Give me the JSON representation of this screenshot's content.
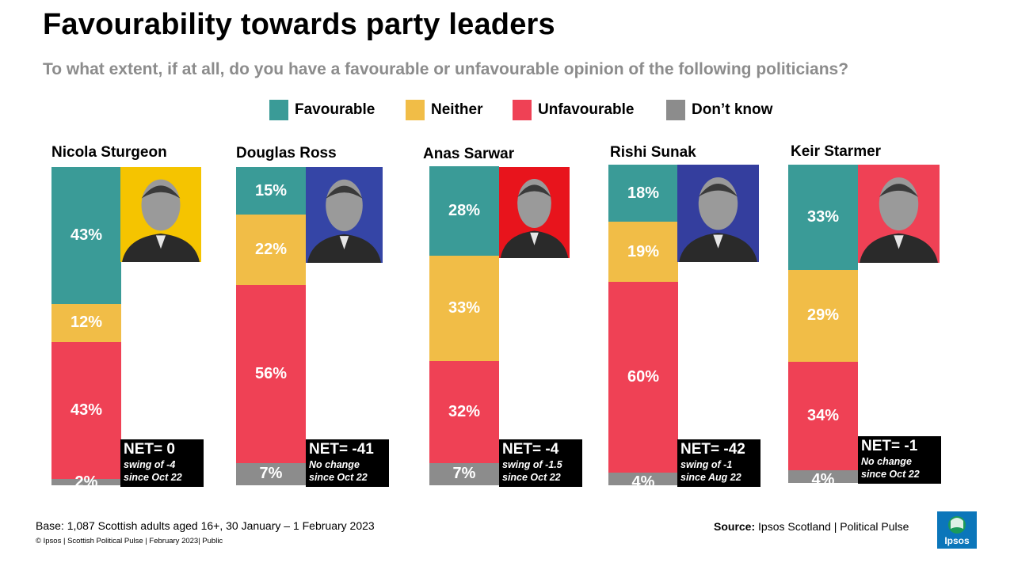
{
  "title": "Favourability towards party leaders",
  "subtitle": "To what extent, if at all, do you have a favourable or unfavourable opinion of the following politicians?",
  "legend": [
    {
      "label": "Favourable",
      "color": "#3a9b97"
    },
    {
      "label": "Neither",
      "color": "#f1bd47"
    },
    {
      "label": "Unfavourable",
      "color": "#ef4155"
    },
    {
      "label": "Don’t know",
      "color": "#8c8c8c"
    }
  ],
  "chart_data": {
    "type": "bar",
    "stacked": true,
    "orientation": "vertical",
    "title": "Favourability towards party leaders",
    "categories": [
      "Nicola Sturgeon",
      "Douglas Ross",
      "Anas Sarwar",
      "Rishi Sunak",
      "Keir Starmer"
    ],
    "series": [
      {
        "name": "Favourable",
        "color": "#3a9b97",
        "values": [
          43,
          15,
          28,
          18,
          33
        ],
        "labels": [
          "43%",
          "15%",
          "28%",
          "18%",
          "33%"
        ]
      },
      {
        "name": "Neither",
        "color": "#f1bd47",
        "values": [
          12,
          22,
          33,
          19,
          29
        ],
        "labels": [
          "12%",
          "22%",
          "33%",
          "19%",
          "29%"
        ]
      },
      {
        "name": "Unfavourable",
        "color": "#ef4155",
        "values": [
          43,
          56,
          32,
          60,
          34
        ],
        "labels": [
          "43%",
          "56%",
          "32%",
          "60%",
          "34%"
        ]
      },
      {
        "name": "Don’t know",
        "color": "#8c8c8c",
        "values": [
          2,
          7,
          7,
          4,
          4
        ],
        "labels": [
          "2%",
          "7%",
          "7%",
          "4%",
          "4%"
        ]
      }
    ],
    "net": [
      {
        "value": "NET= 0",
        "note": "swing of -4 since Oct 22"
      },
      {
        "value": "NET= -41",
        "note": "No change since Oct 22"
      },
      {
        "value": "NET= -4",
        "note": "swing of -1.5 since Oct 22"
      },
      {
        "value": "NET= -42",
        "note": "swing of -1 since Aug 22"
      },
      {
        "value": "NET= -1",
        "note": "No change since Oct 22"
      }
    ],
    "photo_backgrounds": [
      "#f5c400",
      "#3545a6",
      "#e8141c",
      "#343e9e",
      "#ef4155"
    ]
  },
  "footer": {
    "base": "Base: 1,087 Scottish adults aged 16+, 30 January – 1 February 2023",
    "copyright": "© Ipsos | Scottish Political Pulse | February 2023| Public",
    "source_label": "Source:",
    "source_text": " Ipsos Scotland | Political Pulse",
    "logo_text": "Ipsos"
  }
}
